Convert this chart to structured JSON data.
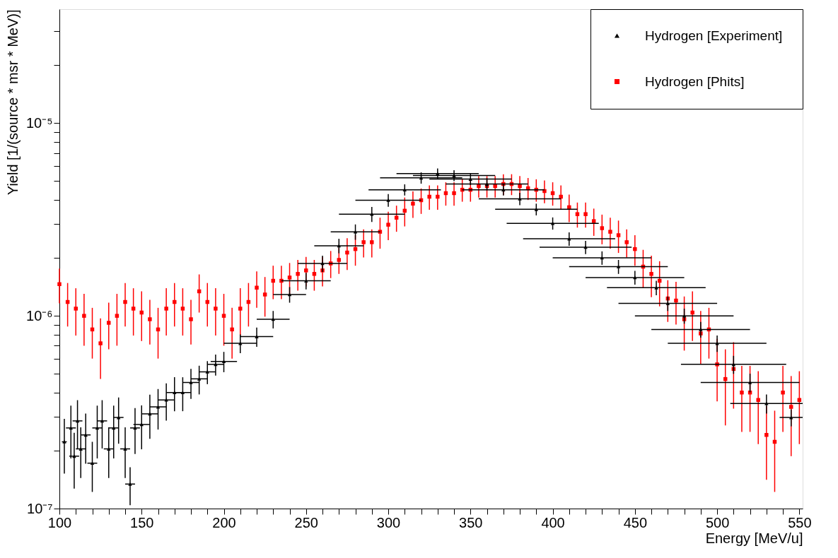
{
  "chart_data": {
    "type": "scatter",
    "xlabel": "Energy [MeV/u]",
    "ylabel": "Yield [1/(source * msr * MeV)]",
    "log": "y",
    "grid": false,
    "legend": "top right",
    "xlim": [
      100,
      552
    ],
    "ylim": [
      1e-07,
      3.9e-05
    ],
    "xticks": [
      100,
      {
        "value": 110,
        "label": null
      },
      {
        "value": 120,
        "label": null
      },
      {
        "value": 130,
        "label": null
      },
      {
        "value": 140,
        "label": null
      },
      150,
      {
        "value": 160,
        "label": null
      },
      {
        "value": 170,
        "label": null
      },
      {
        "value": 180,
        "label": null
      },
      {
        "value": 190,
        "label": null
      },
      200,
      {
        "value": 210,
        "label": null
      },
      {
        "value": 220,
        "label": null
      },
      {
        "value": 230,
        "label": null
      },
      {
        "value": 240,
        "label": null
      },
      250,
      {
        "value": 260,
        "label": null
      },
      {
        "value": 270,
        "label": null
      },
      {
        "value": 280,
        "label": null
      },
      {
        "value": 290,
        "label": null
      },
      300,
      {
        "value": 310,
        "label": null
      },
      {
        "value": 320,
        "label": null
      },
      {
        "value": 330,
        "label": null
      },
      {
        "value": 340,
        "label": null
      },
      350,
      {
        "value": 360,
        "label": null
      },
      {
        "value": 370,
        "label": null
      },
      {
        "value": 380,
        "label": null
      },
      {
        "value": 390,
        "label": null
      },
      400,
      {
        "value": 410,
        "label": null
      },
      {
        "value": 420,
        "label": null
      },
      {
        "value": 430,
        "label": null
      },
      {
        "value": 440,
        "label": null
      },
      450,
      {
        "value": 460,
        "label": null
      },
      {
        "value": 470,
        "label": null
      },
      {
        "value": 480,
        "label": null
      },
      {
        "value": 490,
        "label": null
      },
      500,
      {
        "value": 510,
        "label": null
      },
      {
        "value": 520,
        "label": null
      },
      {
        "value": 530,
        "label": null
      },
      {
        "value": 540,
        "label": null
      },
      550
    ],
    "yticks": [
      {
        "value": 1e-07,
        "label": "10⁻⁷"
      },
      {
        "value": 2e-07,
        "label": null
      },
      {
        "value": 3e-07,
        "label": null
      },
      {
        "value": 4e-07,
        "label": null
      },
      {
        "value": 5e-07,
        "label": null
      },
      {
        "value": 6e-07,
        "label": null
      },
      {
        "value": 7e-07,
        "label": null
      },
      {
        "value": 8e-07,
        "label": null
      },
      {
        "value": 9e-07,
        "label": null
      },
      {
        "value": 1e-06,
        "label": "10⁻⁶"
      },
      {
        "value": 2e-06,
        "label": null
      },
      {
        "value": 3e-06,
        "label": null
      },
      {
        "value": 4e-06,
        "label": null
      },
      {
        "value": 5e-06,
        "label": null
      },
      {
        "value": 6e-06,
        "label": null
      },
      {
        "value": 7e-06,
        "label": null
      },
      {
        "value": 8e-06,
        "label": null
      },
      {
        "value": 9e-06,
        "label": null
      },
      {
        "value": 1e-05,
        "label": "10⁻⁵"
      },
      {
        "value": 2e-05,
        "label": null
      },
      {
        "value": 3e-05,
        "label": null
      }
    ],
    "series": [
      {
        "name": "Hydrogen [Experiment]",
        "color": "#000000",
        "marker": "triangle",
        "x": [
          103,
          107,
          109,
          111,
          113,
          116,
          120,
          123,
          126,
          130,
          133,
          136,
          140,
          143,
          146,
          150,
          155,
          160,
          165,
          170,
          175,
          180,
          185,
          190,
          195,
          200,
          210,
          220,
          230,
          240,
          250,
          260,
          270,
          280,
          290,
          300,
          310,
          320,
          330,
          340,
          350,
          360,
          370,
          380,
          390,
          400,
          410,
          420,
          430,
          440,
          450,
          463,
          470,
          480,
          490,
          500,
          510,
          520,
          530,
          545
        ],
        "values": [
          2.22e-07,
          2.62e-07,
          1.87e-07,
          2.85e-07,
          2.04e-07,
          2.41e-07,
          1.72e-07,
          2.62e-07,
          2.85e-07,
          2.04e-07,
          2.62e-07,
          2.97e-07,
          2.04e-07,
          1.34e-07,
          2.62e-07,
          2.73e-07,
          3.1e-07,
          3.37e-07,
          3.66e-07,
          4e-07,
          4e-07,
          4.51e-07,
          4.71e-07,
          5.12e-07,
          5.6e-07,
          5.8e-07,
          7.2e-07,
          7.8e-07,
          9.6e-07,
          1.29e-06,
          1.52e-06,
          1.87e-06,
          2.31e-06,
          2.73e-06,
          3.37e-06,
          3.98e-06,
          4.51e-06,
          5.2e-06,
          5.47e-06,
          5.35e-06,
          5.12e-06,
          4.83e-06,
          4.51e-06,
          4.05e-06,
          3.57e-06,
          3.02e-06,
          2.51e-06,
          2.27e-06,
          2e-06,
          1.8e-06,
          1.58e-06,
          1.4e-06,
          1.16e-06,
          1e-06,
          8.5e-07,
          7.2e-07,
          5.6e-07,
          4.51e-07,
          3.51e-07,
          2.97e-07
        ],
        "errors": [
          7e-08,
          8e-08,
          6e-08,
          8e-08,
          6e-08,
          7e-08,
          5e-08,
          8e-08,
          8e-08,
          6e-08,
          8e-08,
          8e-08,
          6e-08,
          3e-08,
          7e-08,
          7e-08,
          8e-08,
          8e-08,
          8e-08,
          8e-08,
          8e-08,
          8e-08,
          8e-08,
          7e-08,
          7e-08,
          7e-08,
          8e-08,
          9e-08,
          1e-07,
          1.2e-07,
          1.5e-07,
          1.8e-07,
          2e-07,
          2.5e-07,
          3e-07,
          3e-07,
          3e-07,
          3.5e-07,
          3.5e-07,
          3.5e-07,
          3.5e-07,
          3.5e-07,
          3e-07,
          3e-07,
          2.5e-07,
          2.2e-07,
          2e-07,
          1.8e-07,
          1.6e-07,
          1.5e-07,
          1.3e-07,
          1.2e-07,
          1e-07,
          9e-08,
          8e-08,
          7e-08,
          6e-08,
          5e-08,
          4e-08,
          3e-08
        ],
        "xerrors": [
          1.5,
          3,
          3,
          3,
          3,
          3,
          3,
          3,
          3,
          3,
          3,
          3,
          3,
          3,
          3,
          5,
          5,
          5,
          5,
          5,
          5,
          5,
          5,
          5,
          5,
          8,
          10,
          10,
          10,
          10,
          15,
          15,
          15,
          15,
          20,
          20,
          22,
          25,
          25,
          25,
          25,
          25,
          25,
          25,
          25,
          28,
          28,
          28,
          30,
          30,
          30,
          30,
          30,
          30,
          30,
          30,
          32,
          30,
          22,
          7
        ]
      },
      {
        "name": "Hydrogen [Phits]",
        "color": "#ff0000",
        "marker": "square",
        "x": [
          100,
          105,
          110,
          115,
          120,
          125,
          130,
          135,
          140,
          145,
          150,
          155,
          160,
          165,
          170,
          175,
          180,
          185,
          190,
          195,
          200,
          205,
          210,
          215,
          220,
          225,
          230,
          235,
          240,
          245,
          250,
          255,
          260,
          265,
          270,
          275,
          280,
          285,
          290,
          295,
          300,
          305,
          310,
          315,
          320,
          325,
          330,
          335,
          340,
          345,
          350,
          355,
          360,
          365,
          370,
          375,
          380,
          385,
          390,
          395,
          400,
          405,
          410,
          415,
          420,
          425,
          430,
          435,
          440,
          445,
          450,
          455,
          460,
          465,
          470,
          475,
          480,
          485,
          490,
          495,
          500,
          505,
          510,
          515,
          520,
          525,
          530,
          535,
          540,
          545,
          550
        ],
        "values": [
          1.46e-06,
          1.18e-06,
          1.09e-06,
          1e-06,
          8.5e-07,
          7.2e-07,
          9.2e-07,
          1e-06,
          1.18e-06,
          1.09e-06,
          1.04e-06,
          9.6e-07,
          8.5e-07,
          1.09e-06,
          1.18e-06,
          1.09e-06,
          9.6e-07,
          1.34e-06,
          1.18e-06,
          1.09e-06,
          1e-06,
          8.5e-07,
          1.09e-06,
          1.18e-06,
          1.4e-06,
          1.29e-06,
          1.52e-06,
          1.52e-06,
          1.58e-06,
          1.65e-06,
          1.72e-06,
          1.65e-06,
          1.72e-06,
          1.87e-06,
          1.95e-06,
          2.13e-06,
          2.22e-06,
          2.41e-06,
          2.41e-06,
          2.73e-06,
          2.97e-06,
          3.23e-06,
          3.51e-06,
          3.82e-06,
          3.98e-06,
          4.15e-06,
          4.15e-06,
          4.33e-06,
          4.33e-06,
          4.51e-06,
          4.51e-06,
          4.71e-06,
          4.71e-06,
          4.71e-06,
          4.83e-06,
          4.83e-06,
          4.71e-06,
          4.59e-06,
          4.51e-06,
          4.44e-06,
          4.33e-06,
          4.15e-06,
          3.66e-06,
          3.37e-06,
          3.37e-06,
          3.1e-06,
          2.85e-06,
          2.73e-06,
          2.62e-06,
          2.41e-06,
          2.22e-06,
          1.8e-06,
          1.65e-06,
          1.52e-06,
          1.23e-06,
          1.2e-06,
          9.6e-07,
          1.04e-06,
          8.1e-07,
          8.5e-07,
          5.6e-07,
          4.7e-07,
          5.3e-07,
          4e-07,
          4e-07,
          3.66e-07,
          2.41e-07,
          2.22e-07,
          4e-07,
          3.37e-07,
          3.66e-07
        ],
        "errors": [
          3e-07,
          3e-07,
          3e-07,
          3e-07,
          2.5e-07,
          2.5e-07,
          2.5e-07,
          3e-07,
          3e-07,
          3e-07,
          3e-07,
          2.5e-07,
          2.5e-07,
          3e-07,
          3e-07,
          3e-07,
          2.5e-07,
          3e-07,
          3e-07,
          3e-07,
          3e-07,
          2.5e-07,
          3e-07,
          3e-07,
          3e-07,
          3e-07,
          3e-07,
          3e-07,
          3e-07,
          3e-07,
          3e-07,
          3e-07,
          3e-07,
          3e-07,
          3e-07,
          4e-07,
          4e-07,
          4e-07,
          4e-07,
          5e-07,
          5e-07,
          5e-07,
          6e-07,
          6e-07,
          6e-07,
          6e-07,
          6e-07,
          6e-07,
          6e-07,
          6e-07,
          6e-07,
          6e-07,
          6e-07,
          6e-07,
          6e-07,
          6e-07,
          6e-07,
          6e-07,
          6e-07,
          6e-07,
          6e-07,
          6e-07,
          6e-07,
          5e-07,
          5e-07,
          5e-07,
          5e-07,
          5e-07,
          5e-07,
          4e-07,
          4e-07,
          4e-07,
          4e-07,
          4e-07,
          3e-07,
          3e-07,
          3e-07,
          3e-07,
          2.5e-07,
          2.5e-07,
          2e-07,
          2e-07,
          2e-07,
          1.5e-07,
          1.5e-07,
          1.5e-07,
          1e-07,
          1e-07,
          1.5e-07,
          1.5e-07,
          1.5e-07
        ]
      }
    ]
  }
}
